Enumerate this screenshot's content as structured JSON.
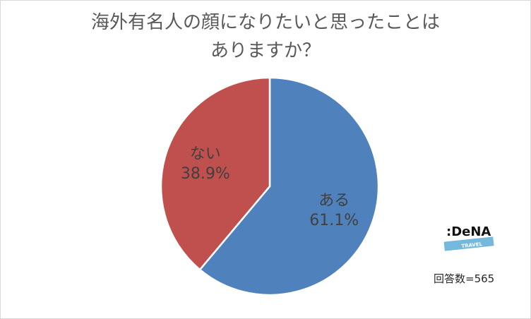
{
  "chart_data": {
    "type": "pie",
    "title_lines": [
      "海外有名人の顔になりたいと思ったことは",
      "ありますか？"
    ],
    "slices": [
      {
        "label": "ある",
        "value": 61.1,
        "value_text": "61.1%",
        "color": "#4f81bd"
      },
      {
        "label": "ない",
        "value": 38.9,
        "value_text": "38.9%",
        "color": "#c0504d"
      }
    ],
    "start": "12 o'clock, clockwise",
    "legend": "none (labels inside slices)"
  },
  "logo": {
    "brand": "DeNA",
    "sub": "TRAVEL",
    "accent": "#74b9dc"
  },
  "footnote": "回答数=565"
}
